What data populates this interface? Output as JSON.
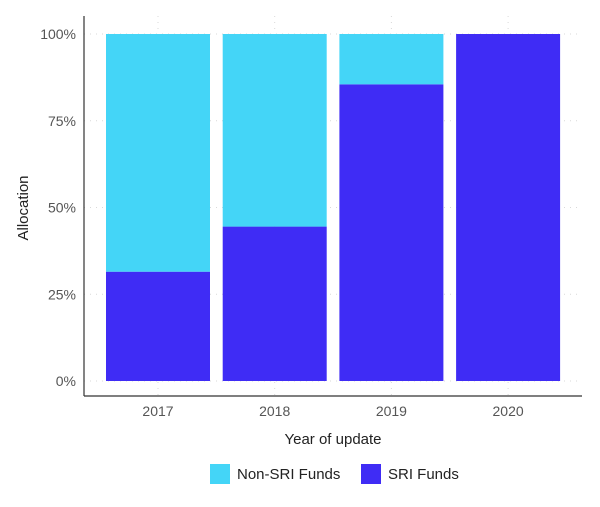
{
  "chart_data": {
    "type": "bar",
    "stacked": true,
    "categories": [
      "2017",
      "2018",
      "2019",
      "2020"
    ],
    "series": [
      {
        "name": "SRI Funds",
        "values": [
          31.5,
          44.5,
          85.5,
          100
        ],
        "color": "#3f2cf5"
      },
      {
        "name": "Non-SRI Funds",
        "values": [
          68.5,
          55.5,
          14.5,
          0
        ],
        "color": "#44d5f7"
      }
    ],
    "xlabel": "Year of update",
    "ylabel": "Allocation",
    "ylim": [
      0,
      100
    ],
    "yticks": [
      0,
      25,
      50,
      75,
      100
    ],
    "ytick_labels": [
      "0%",
      "25%",
      "50%",
      "75%",
      "100%"
    ],
    "grid": true,
    "legend": {
      "position": "bottom",
      "entries": [
        {
          "label": "Non-SRI Funds",
          "color": "#44d5f7"
        },
        {
          "label": "SRI Funds",
          "color": "#3f2cf5"
        }
      ]
    }
  }
}
